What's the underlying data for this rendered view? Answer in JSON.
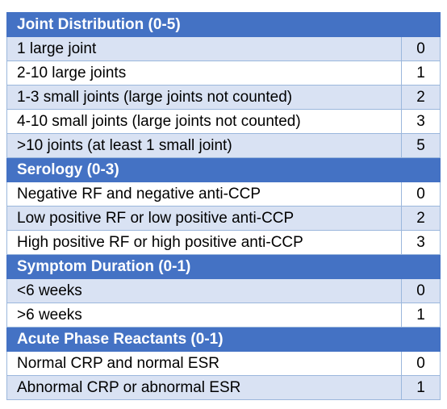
{
  "sections": [
    {
      "title": "Joint Distribution (0-5)",
      "rows": [
        {
          "label": "1 large joint",
          "score": "0"
        },
        {
          "label": "2-10 large joints",
          "score": "1"
        },
        {
          "label": "1-3 small joints (large joints not counted)",
          "score": "2"
        },
        {
          "label": "4-10 small joints (large joints not counted)",
          "score": "3"
        },
        {
          "label": ">10 joints (at least 1 small joint)",
          "score": "5"
        }
      ]
    },
    {
      "title": "Serology (0-3)",
      "rows": [
        {
          "label": "Negative RF and negative anti-CCP",
          "score": "0"
        },
        {
          "label": "Low positive RF or low positive anti-CCP",
          "score": "2"
        },
        {
          "label": "High positive RF or high positive anti-CCP",
          "score": "3"
        }
      ]
    },
    {
      "title": "Symptom Duration (0-1)",
      "rows": [
        {
          "label": "<6 weeks",
          "score": "0"
        },
        {
          "label": ">6 weeks",
          "score": "1"
        }
      ]
    },
    {
      "title": "Acute Phase Reactants (0-1)",
      "rows": [
        {
          "label": "Normal CRP and normal ESR",
          "score": "0"
        },
        {
          "label": "Abnormal CRP or abnormal ESR",
          "score": "1"
        }
      ]
    }
  ]
}
